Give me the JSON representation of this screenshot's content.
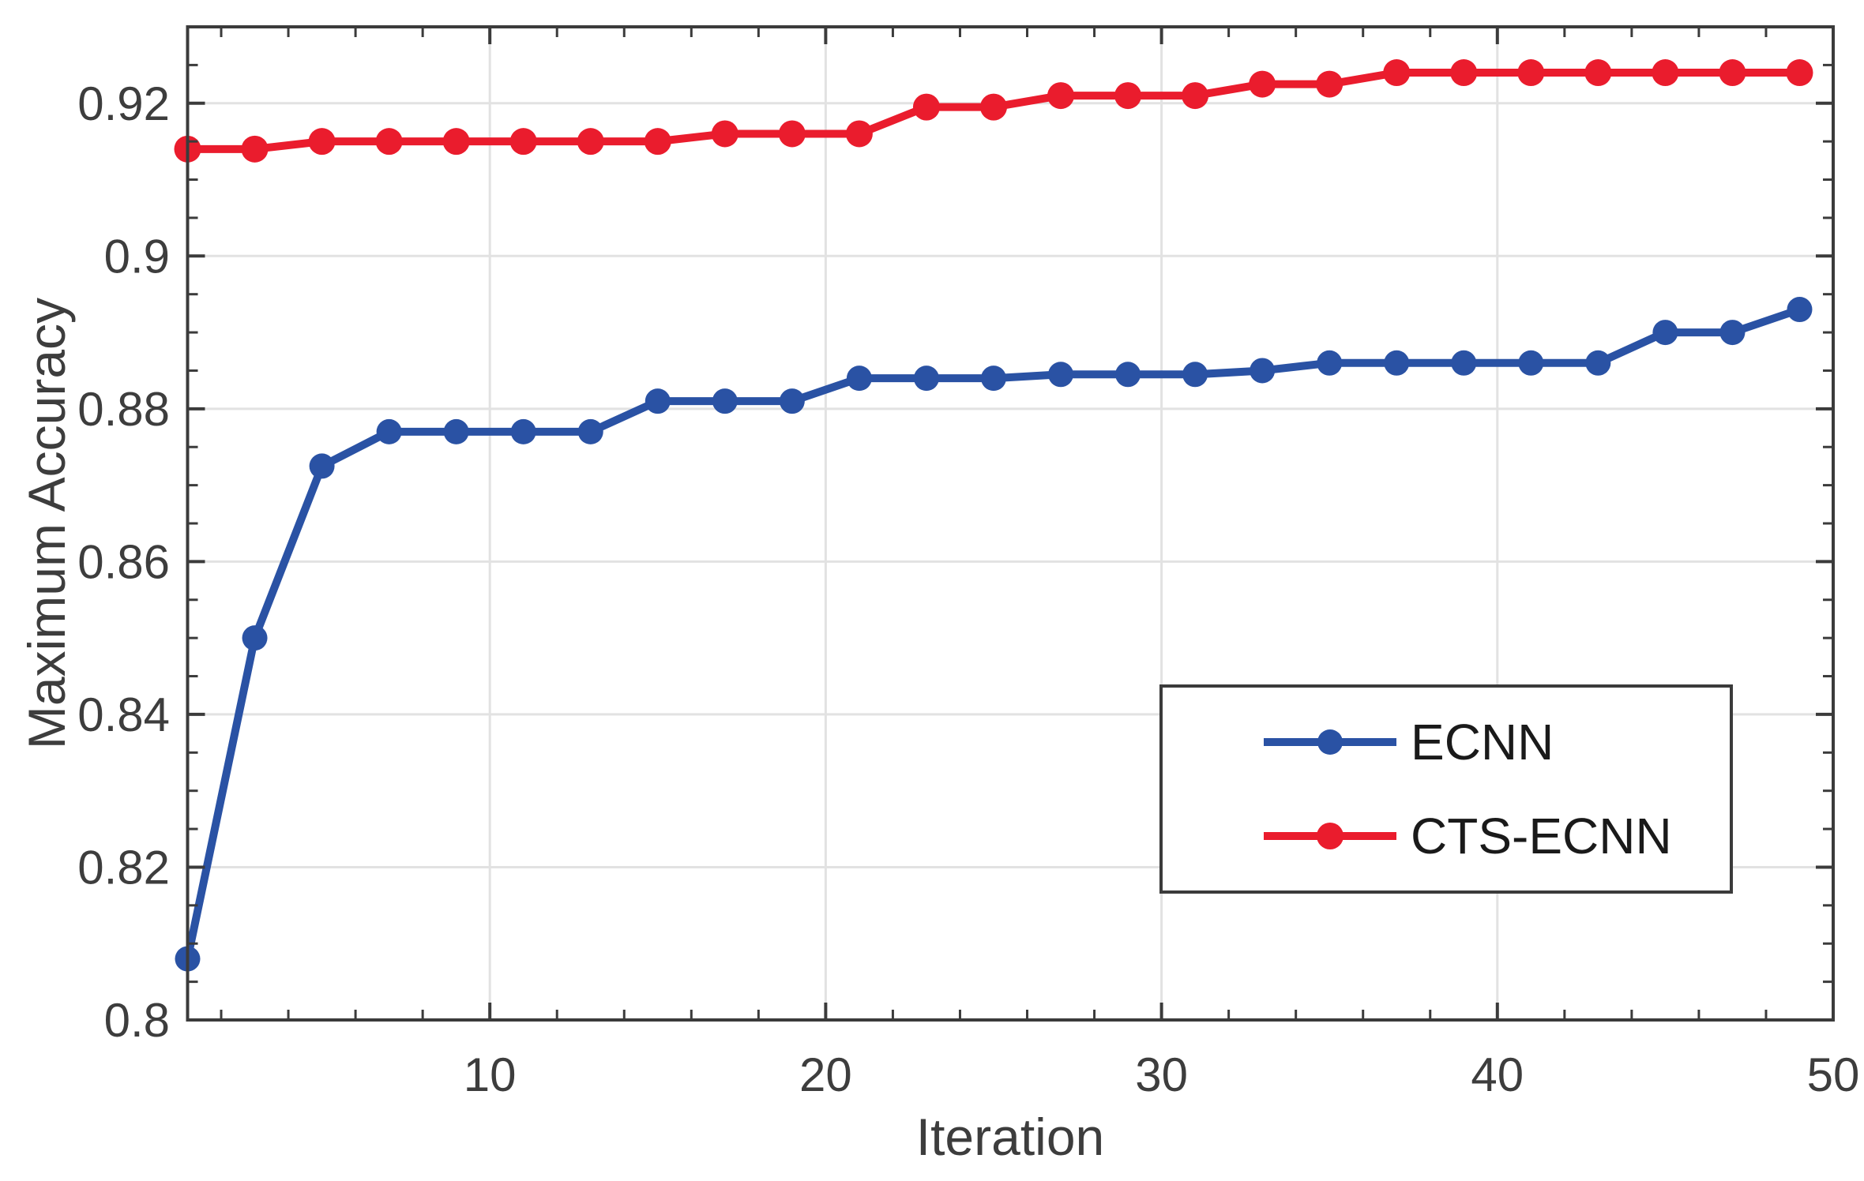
{
  "figure": {
    "background": "#ffffff",
    "axis_color": "#3b3b3b",
    "grid_color": "#e2e2e2",
    "tick_label_color": "#3d3d3d"
  },
  "chart_data": {
    "type": "line",
    "title": "",
    "xlabel": "Iteration",
    "ylabel": "Maximum Accuracy",
    "xlim": [
      1,
      50
    ],
    "ylim": [
      0.8,
      0.93
    ],
    "grid": true,
    "legend_position": "inside lower right",
    "x_tick_labels": [
      "10",
      "20",
      "30",
      "40",
      "50"
    ],
    "y_tick_labels": [
      "0.8",
      "0.82",
      "0.84",
      "0.86",
      "0.88",
      "0.9",
      "0.92"
    ],
    "x_minor_tick_step": 2,
    "y_minor_tick_step": 0.005,
    "x": [
      1,
      3,
      5,
      7,
      9,
      11,
      13,
      15,
      17,
      19,
      21,
      23,
      25,
      27,
      29,
      31,
      33,
      35,
      37,
      39,
      41,
      43,
      45,
      47,
      49
    ],
    "series": [
      {
        "name": "ECNN",
        "color": "#2a52a4",
        "marker": "circle-marker",
        "values": [
          0.808,
          0.85,
          0.8725,
          0.877,
          0.877,
          0.877,
          0.877,
          0.881,
          0.881,
          0.881,
          0.884,
          0.884,
          0.884,
          0.8845,
          0.8845,
          0.8845,
          0.885,
          0.886,
          0.886,
          0.886,
          0.886,
          0.886,
          0.89,
          0.89,
          0.893
        ]
      },
      {
        "name": "CTS-ECNN",
        "color": "#ea1c2d",
        "marker": "circle-marker",
        "values": [
          0.914,
          0.914,
          0.915,
          0.915,
          0.915,
          0.915,
          0.915,
          0.915,
          0.916,
          0.916,
          0.916,
          0.9195,
          0.9195,
          0.921,
          0.921,
          0.921,
          0.9225,
          0.9225,
          0.924,
          0.924,
          0.924,
          0.924,
          0.924,
          0.924,
          0.924
        ]
      }
    ]
  },
  "legend": {
    "items": [
      {
        "label": "ECNN"
      },
      {
        "label": "CTS-ECNN"
      }
    ]
  }
}
